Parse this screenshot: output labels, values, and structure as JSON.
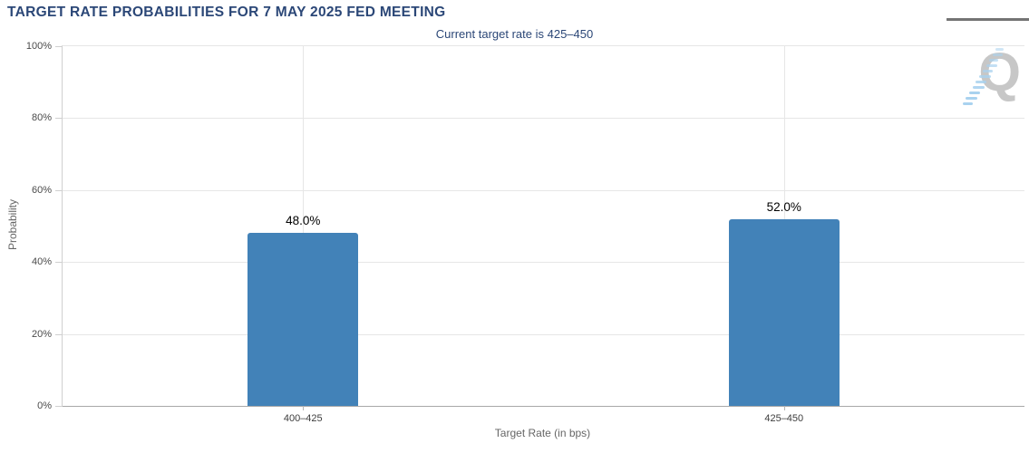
{
  "header": {
    "title": "TARGET RATE PROBABILITIES FOR 7 MAY 2025 FED MEETING"
  },
  "menu": {
    "icon": "hamburger-icon"
  },
  "watermark": {
    "letter": "Q"
  },
  "chart_data": {
    "type": "bar",
    "title": "TARGET RATE PROBABILITIES FOR 7 MAY 2025 FED MEETING",
    "subtitle": "Current target rate is 425–450",
    "categories": [
      "400–425",
      "425–450"
    ],
    "values": [
      48.0,
      52.0
    ],
    "value_labels": [
      "48.0%",
      "52.0%"
    ],
    "xlabel": "Target Rate (in bps)",
    "ylabel": "Probability",
    "ylim": [
      0,
      100
    ],
    "yticks": [
      0,
      20,
      40,
      60,
      80,
      100
    ],
    "ytick_labels": [
      "0%",
      "20%",
      "40%",
      "60%",
      "80%",
      "100%"
    ],
    "grid": true,
    "legend": "none",
    "bar_color": "#4282b8",
    "title_color": "#2b4777",
    "grid_color": "#e6e6e6"
  }
}
